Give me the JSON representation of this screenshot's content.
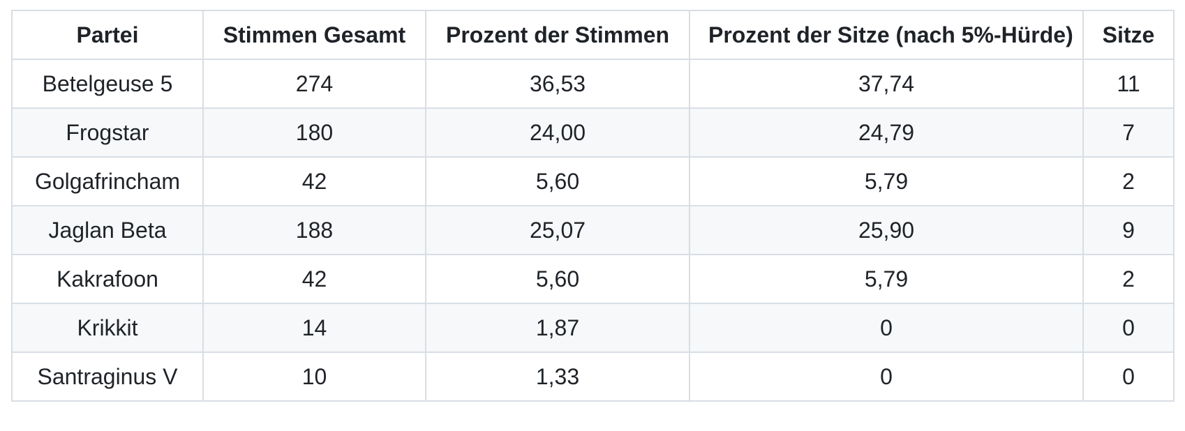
{
  "table": {
    "name": "election-results-table",
    "columns": [
      {
        "key": "partei",
        "label": "Partei"
      },
      {
        "key": "stimmen_gesamt",
        "label": "Stimmen Gesamt"
      },
      {
        "key": "prozent_der_stimmen",
        "label": "Prozent der Stimmen"
      },
      {
        "key": "prozent_der_sitze",
        "label": "Prozent der Sitze (nach 5%-Hürde)"
      },
      {
        "key": "sitze",
        "label": "Sitze"
      }
    ],
    "rows": [
      [
        "Betelgeuse 5",
        "274",
        "36,53",
        "37,74",
        "11"
      ],
      [
        "Frogstar",
        "180",
        "24,00",
        "24,79",
        "7"
      ],
      [
        "Golgafrincham",
        "42",
        "5,60",
        "5,79",
        "2"
      ],
      [
        "Jaglan Beta",
        "188",
        "25,07",
        "25,90",
        "9"
      ],
      [
        "Kakrafoon",
        "42",
        "5,60",
        "5,79",
        "2"
      ],
      [
        "Krikkit",
        "14",
        "1,87",
        "0",
        "0"
      ],
      [
        "Santraginus V",
        "10",
        "1,33",
        "0",
        "0"
      ]
    ]
  },
  "colors": {
    "text": "#1f2328",
    "border": "#d8dee4",
    "row_stripe": "#f6f8fa",
    "background": "#ffffff"
  }
}
